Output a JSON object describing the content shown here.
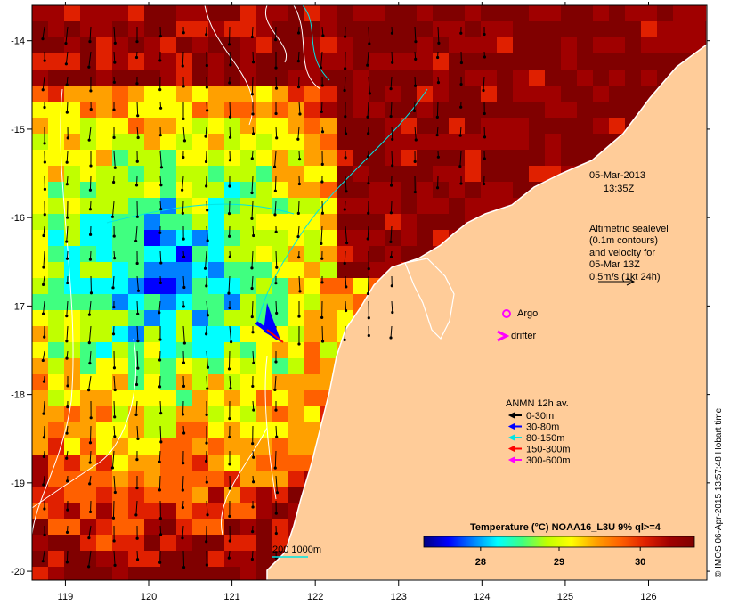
{
  "map": {
    "date": "05-Mar-2013",
    "time": "13:35Z",
    "lon_ticks": [
      "119",
      "120",
      "121",
      "122",
      "123",
      "124",
      "125",
      "126"
    ],
    "lat_ticks": [
      "-14",
      "-15",
      "-16",
      "-17",
      "-18",
      "-19",
      "-20"
    ],
    "lon_range": [
      118.6,
      126.7
    ],
    "lat_range": [
      -20.1,
      -13.6
    ],
    "altimetry": {
      "line1": "Altimetric sealevel",
      "line2": "(0.1m contours)",
      "line3": "and velocity for",
      "line4": "05-Mar 13Z",
      "line5": "0.5m/s (1kt 24h)"
    },
    "legend": {
      "argo": "Argo",
      "drifter": "drifter",
      "anmn_title": "ANMN 12h av.",
      "depths": [
        {
          "label": "0-30m",
          "color": "#000000"
        },
        {
          "label": "30-80m",
          "color": "#0000ff"
        },
        {
          "label": "80-150m",
          "color": "#00e5e5"
        },
        {
          "label": "150-300m",
          "color": "#ff0000"
        },
        {
          "label": "300-600m",
          "color": "#ff00ff"
        }
      ]
    },
    "scale_label": "200  1000m",
    "colorbar": {
      "title": "Temperature (°C) NOAA16_L3U 9% ql>=4",
      "ticks": [
        "28",
        "29",
        "30"
      ],
      "colors": [
        "#000080",
        "#0000ff",
        "#0080ff",
        "#00ffff",
        "#40ff80",
        "#c0ff00",
        "#ffff00",
        "#ffa000",
        "#ff6000",
        "#e02000",
        "#a00000",
        "#800000"
      ]
    },
    "credit": "© IMOS 06-Apr-2015 13:57:48 Hobart time",
    "land_color": "#ffcc99"
  }
}
